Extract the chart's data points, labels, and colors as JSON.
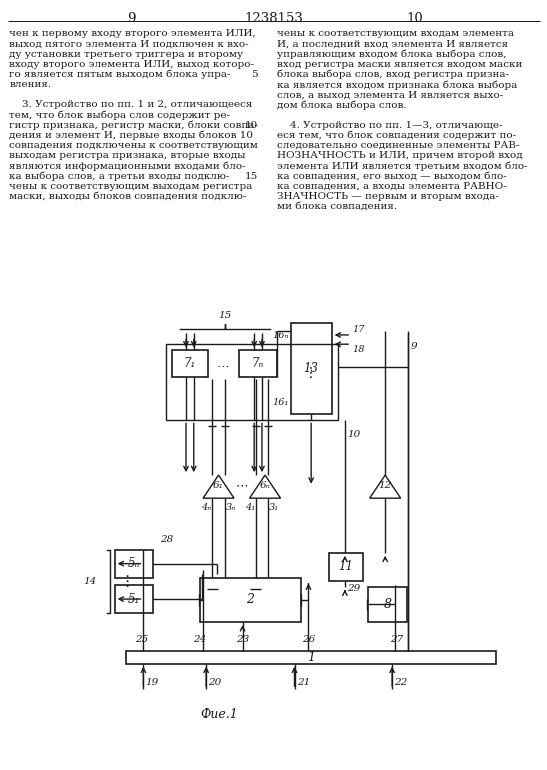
{
  "title": "1238153",
  "page_left": "9",
  "page_right": "10",
  "fig_label": "Фие.1",
  "bg_color": "#ffffff",
  "line_color": "#1a1a1a",
  "text_left": [
    "чен к первому входу второго элемента ИЛИ,",
    "выход пятого элемента И подключен к вхо-",
    "ду установки третьего триггера и второму",
    "входу второго элемента ИЛИ, выход которо-",
    "го является пятым выходом блока упра-",
    "вления.",
    "",
    "    3. Устройство по пп. 1 и 2, отличающееся",
    "тем, что блок выбора слов содержит ре-",
    "гистр признака, регистр маски, блоки совпа-",
    "дения и элемент И, первые входы блоков 10",
    "совпадения подключены к соответствующим",
    "выходам регистра признака, вторые входы",
    "являются информационными входами бло-",
    "ка выбора слов, а третьи входы подклю-",
    "чены к соответствующим выходам регистра",
    "маски, выходы блоков совпадения подклю-"
  ],
  "text_right": [
    "чены к соответствующим входам элемента",
    "И, а последний вход элемента И является",
    "управляющим входом блока выбора слов,",
    "вход регистра маски является входом маски",
    "блока выбора слов, вход регистра призна-",
    "ка является входом признака блока выбора",
    "слов, а выход элемента И является выхо-",
    "дом блока выбора слов.",
    "",
    "    4. Устройство по пп. 1—3, отличающе-",
    "еся тем, что блок совпадения содержит по-",
    "следовательно соединенные элементы РАВ-",
    "НОЗНАЧНОСТЬ и ИЛИ, причем второй вход",
    "элемента ИЛИ является третьим входом бло-",
    "ка совпадения, его выход — выходом бло-",
    "ка совпадения, а входы элемента РАВНО-",
    "ЗНАЧНОСТЬ — первым и вторым входа-",
    "ми блока совпадения."
  ]
}
